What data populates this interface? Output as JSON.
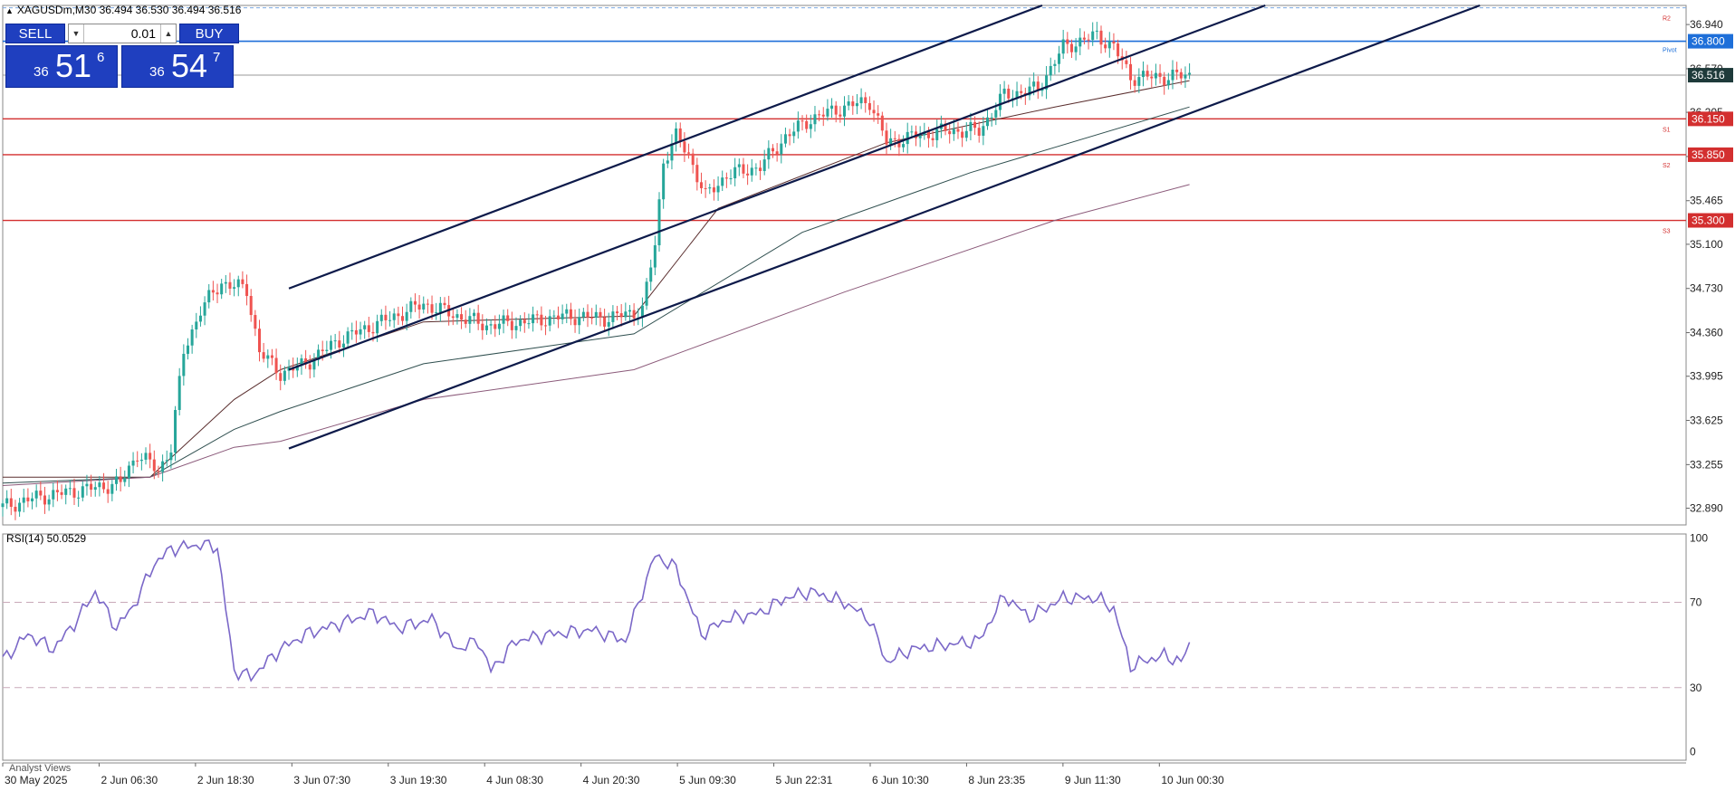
{
  "header": {
    "symbol_label": "XAGUSDm,M30",
    "ohlc": "36.494 36.530 36.494 36.516"
  },
  "one_click": {
    "sell_label": "SELL",
    "buy_label": "BUY",
    "lot": "0.01",
    "bid_small": "36",
    "bid_big": "51",
    "bid_sup": "6",
    "ask_small": "36",
    "ask_big": "54",
    "ask_sup": "7"
  },
  "indicator": {
    "rsi_label": "RSI(14) 50.0529"
  },
  "footer": {
    "analyst_views": "Analyst Views"
  },
  "colors": {
    "bull": "#26a69a",
    "bear": "#ef5350",
    "pivot": "#1e6fd9",
    "support": "#d32f2f",
    "channel": "#0d1a4a",
    "rsi": "#7b68c8",
    "current": "#1e3a3a"
  },
  "chart_data": [
    {
      "type": "candlestick",
      "symbol": "XAGUSDm",
      "timeframe": "M30",
      "ylim": [
        32.75,
        37.1
      ],
      "y_ticks": [
        "36.940",
        "36.570",
        "36.205",
        "35.835",
        "35.465",
        "35.100",
        "34.730",
        "34.360",
        "33.995",
        "33.625",
        "33.255",
        "32.890"
      ],
      "x_ticks": [
        "30 May 2025",
        "2 Jun 06:30",
        "2 Jun 18:30",
        "3 Jun 07:30",
        "3 Jun 19:30",
        "4 Jun 08:30",
        "4 Jun 20:30",
        "5 Jun 09:30",
        "5 Jun 22:31",
        "6 Jun 10:30",
        "8 Jun 23:35",
        "9 Jun 11:30",
        "10 Jun 00:30"
      ],
      "price_path": [
        [
          0,
          32.9
        ],
        [
          8,
          32.98
        ],
        [
          20,
          33.05
        ],
        [
          28,
          33.1
        ],
        [
          32,
          33.35
        ],
        [
          37,
          33.2
        ],
        [
          40,
          33.4
        ],
        [
          43,
          34.2
        ],
        [
          47,
          34.55
        ],
        [
          52,
          34.78
        ],
        [
          58,
          34.72
        ],
        [
          61,
          34.2
        ],
        [
          66,
          34.02
        ],
        [
          72,
          34.1
        ],
        [
          80,
          34.3
        ],
        [
          90,
          34.45
        ],
        [
          100,
          34.6
        ],
        [
          108,
          34.5
        ],
        [
          115,
          34.42
        ],
        [
          124,
          34.45
        ],
        [
          134,
          34.5
        ],
        [
          144,
          34.48
        ],
        [
          152,
          34.55
        ],
        [
          155,
          35.1
        ],
        [
          157,
          35.8
        ],
        [
          160,
          36.0
        ],
        [
          163,
          35.85
        ],
        [
          167,
          35.5
        ],
        [
          172,
          35.68
        ],
        [
          180,
          35.75
        ],
        [
          186,
          36.0
        ],
        [
          192,
          36.15
        ],
        [
          200,
          36.25
        ],
        [
          206,
          36.3
        ],
        [
          210,
          35.95
        ],
        [
          216,
          36.0
        ],
        [
          224,
          36.05
        ],
        [
          232,
          36.05
        ],
        [
          238,
          36.35
        ],
        [
          246,
          36.4
        ],
        [
          252,
          36.75
        ],
        [
          260,
          36.85
        ],
        [
          264,
          36.75
        ],
        [
          268,
          36.5
        ],
        [
          276,
          36.5
        ],
        [
          282,
          36.516
        ]
      ],
      "horizontal_levels": [
        {
          "name": "R2",
          "value": 37.08,
          "style": "dashed"
        },
        {
          "name": "Pivot",
          "value": 36.8,
          "label": "36.800"
        },
        {
          "value": 36.516,
          "label": "36.516",
          "current": true
        },
        {
          "name": "S1",
          "value": 36.15,
          "label": "36.150"
        },
        {
          "name": "S2",
          "value": 35.85,
          "label": "35.850"
        },
        {
          "name": "S3",
          "value": 35.3,
          "label": "35.300"
        }
      ],
      "channel_lines": [
        {
          "from": [
            68,
            34.73
          ],
          "to": [
            247,
            37.1
          ]
        },
        {
          "from": [
            68,
            34.05
          ],
          "to": [
            300,
            37.1
          ]
        },
        {
          "from": [
            68,
            33.39
          ],
          "to": [
            351,
            37.1
          ]
        }
      ],
      "moving_averages": [
        {
          "path": [
            [
              0,
              33.15
            ],
            [
              35,
              33.15
            ],
            [
              55,
              33.8
            ],
            [
              66,
              34.05
            ],
            [
              100,
              34.45
            ],
            [
              150,
              34.5
            ],
            [
              170,
              35.4
            ],
            [
              210,
              35.95
            ],
            [
              250,
              36.25
            ],
            [
              282,
              36.47
            ]
          ]
        },
        {
          "path": [
            [
              0,
              33.1
            ],
            [
              35,
              33.15
            ],
            [
              55,
              33.55
            ],
            [
              66,
              33.7
            ],
            [
              100,
              34.1
            ],
            [
              150,
              34.35
            ],
            [
              190,
              35.2
            ],
            [
              230,
              35.7
            ],
            [
              282,
              36.25
            ]
          ]
        },
        {
          "path": [
            [
              0,
              33.08
            ],
            [
              35,
              33.15
            ],
            [
              55,
              33.4
            ],
            [
              66,
              33.45
            ],
            [
              100,
              33.8
            ],
            [
              150,
              34.05
            ],
            [
              200,
              34.7
            ],
            [
              250,
              35.3
            ],
            [
              282,
              35.6
            ]
          ]
        }
      ]
    },
    {
      "type": "line",
      "name": "RSI(14)",
      "ylim": [
        0,
        100
      ],
      "y_ticks": [
        "100",
        "70",
        "30",
        "0"
      ],
      "levels": [
        70,
        30
      ],
      "values": [
        [
          0,
          43
        ],
        [
          6,
          55
        ],
        [
          12,
          48
        ],
        [
          17,
          60
        ],
        [
          22,
          75
        ],
        [
          27,
          58
        ],
        [
          31,
          68
        ],
        [
          36,
          88
        ],
        [
          40,
          95
        ],
        [
          47,
          97
        ],
        [
          51,
          96
        ],
        [
          55,
          38
        ],
        [
          59,
          35
        ],
        [
          66,
          48
        ],
        [
          72,
          55
        ],
        [
          80,
          60
        ],
        [
          88,
          65
        ],
        [
          94,
          58
        ],
        [
          102,
          62
        ],
        [
          108,
          48
        ],
        [
          113,
          52
        ],
        [
          116,
          38
        ],
        [
          122,
          52
        ],
        [
          130,
          55
        ],
        [
          140,
          57
        ],
        [
          148,
          52
        ],
        [
          152,
          75
        ],
        [
          155,
          92
        ],
        [
          160,
          86
        ],
        [
          166,
          55
        ],
        [
          172,
          62
        ],
        [
          180,
          65
        ],
        [
          186,
          72
        ],
        [
          192,
          75
        ],
        [
          200,
          70
        ],
        [
          206,
          62
        ],
        [
          210,
          42
        ],
        [
          216,
          48
        ],
        [
          224,
          50
        ],
        [
          232,
          52
        ],
        [
          238,
          73
        ],
        [
          244,
          63
        ],
        [
          252,
          72
        ],
        [
          260,
          72
        ],
        [
          264,
          67
        ],
        [
          268,
          40
        ],
        [
          272,
          43
        ],
        [
          276,
          45
        ],
        [
          280,
          42
        ],
        [
          282,
          50
        ]
      ]
    }
  ]
}
